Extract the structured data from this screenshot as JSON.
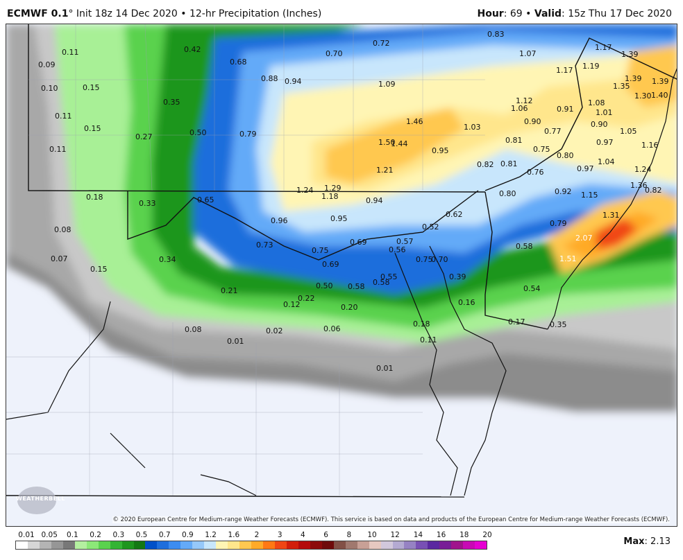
{
  "header": {
    "model": "ECMWF 0.1",
    "degree": "°",
    "init": "Init 18z 14 Dec 2020",
    "bullet": "•",
    "product": "12-hr Precipitation (Inches)",
    "hour_label": "Hour",
    "hour_value": "69",
    "valid_label": "Valid",
    "valid_value": "15z Thu 17 Dec 2020"
  },
  "map": {
    "credit": "© 2020 European Centre for Medium-range Weather Forecasts (ECMWF). This service is based on data and products of the European Centre for Medium-range Weather Forecasts (ECMWF).",
    "logo": "WEATHERBELL",
    "labels": [
      {
        "text": "0.11"
      },
      {
        "text": "0.09"
      },
      {
        "text": "0.10"
      },
      {
        "text": "0.11"
      },
      {
        "text": "0.11"
      },
      {
        "text": "0.15"
      },
      {
        "text": "0.15"
      },
      {
        "text": "0.35"
      },
      {
        "text": "0.27"
      },
      {
        "text": "0.42"
      },
      {
        "text": "0.50"
      },
      {
        "text": "0.68"
      },
      {
        "text": "0.88"
      },
      {
        "text": "0.94"
      },
      {
        "text": "0.70"
      },
      {
        "text": "0.72"
      },
      {
        "text": "0.83"
      },
      {
        "text": "1.09"
      },
      {
        "text": "0.79"
      },
      {
        "text": "1.46"
      },
      {
        "text": "1.50"
      },
      {
        "text": "1.44"
      },
      {
        "text": "1.21"
      },
      {
        "text": "0.95"
      },
      {
        "text": "1.03"
      },
      {
        "text": "1.07"
      },
      {
        "text": "1.17"
      },
      {
        "text": "1.17"
      },
      {
        "text": "1.19"
      },
      {
        "text": "1.39"
      },
      {
        "text": "1.39"
      },
      {
        "text": "1.35"
      },
      {
        "text": "1.39"
      },
      {
        "text": "1.30"
      },
      {
        "text": "1.40"
      },
      {
        "text": "1.12"
      },
      {
        "text": "1.06"
      },
      {
        "text": "0.91"
      },
      {
        "text": "1.08"
      },
      {
        "text": "1.01"
      },
      {
        "text": "0.90"
      },
      {
        "text": "0.90"
      },
      {
        "text": "0.77"
      },
      {
        "text": "1.05"
      },
      {
        "text": "0.81"
      },
      {
        "text": "0.97"
      },
      {
        "text": "1.16"
      },
      {
        "text": "0.75"
      },
      {
        "text": "0.82"
      },
      {
        "text": "0.81"
      },
      {
        "text": "0.80"
      },
      {
        "text": "0.76"
      },
      {
        "text": "0.97"
      },
      {
        "text": "1.04"
      },
      {
        "text": "1.24"
      },
      {
        "text": "0.18"
      },
      {
        "text": "0.33"
      },
      {
        "text": "0.65"
      },
      {
        "text": "1.24"
      },
      {
        "text": "1.29"
      },
      {
        "text": "1.18"
      },
      {
        "text": "0.94"
      },
      {
        "text": "0.80"
      },
      {
        "text": "0.92"
      },
      {
        "text": "1.15"
      },
      {
        "text": "1.36"
      },
      {
        "text": "0.82"
      },
      {
        "text": "0.96"
      },
      {
        "text": "0.95"
      },
      {
        "text": "0.62"
      },
      {
        "text": "0.52"
      },
      {
        "text": "1.31"
      },
      {
        "text": "0.79"
      },
      {
        "text": "0.08"
      },
      {
        "text": "0.73"
      },
      {
        "text": "0.69"
      },
      {
        "text": "0.57"
      },
      {
        "text": "0.58"
      },
      {
        "text": "2.07",
        "white": true
      },
      {
        "text": "0.75"
      },
      {
        "text": "0.56"
      },
      {
        "text": "0.07"
      },
      {
        "text": "0.34"
      },
      {
        "text": "0.69"
      },
      {
        "text": "0.75"
      },
      {
        "text": "0.70"
      },
      {
        "text": "1.51",
        "white": true
      },
      {
        "text": "0.15"
      },
      {
        "text": "0.55"
      },
      {
        "text": "0.39"
      },
      {
        "text": "0.50"
      },
      {
        "text": "0.58"
      },
      {
        "text": "0.58"
      },
      {
        "text": "0.21"
      },
      {
        "text": "0.54"
      },
      {
        "text": "0.22"
      },
      {
        "text": "0.12"
      },
      {
        "text": "0.16"
      },
      {
        "text": "0.20"
      },
      {
        "text": "0.17"
      },
      {
        "text": "0.35"
      },
      {
        "text": "0.18"
      },
      {
        "text": "0.08"
      },
      {
        "text": "0.02"
      },
      {
        "text": "0.06"
      },
      {
        "text": "0.01"
      },
      {
        "text": "0.11"
      },
      {
        "text": "0.01"
      }
    ]
  },
  "legend": {
    "ticks": [
      "0.01",
      "0.05",
      "0.1",
      "0.2",
      "0.3",
      "0.5",
      "0.7",
      "0.9",
      "1.2",
      "1.6",
      "2",
      "3",
      "4",
      "6",
      "8",
      "10",
      "12",
      "14",
      "16",
      "18",
      "20"
    ],
    "colors": [
      "#ffffff",
      "#d6d6d6",
      "#b4b4b4",
      "#969696",
      "#787878",
      "#b4f0a0",
      "#8ce878",
      "#5ad24e",
      "#34b434",
      "#1e961e",
      "#147814",
      "#0050c8",
      "#1e6edc",
      "#3c8cf0",
      "#64aaf8",
      "#96c8fa",
      "#c8e6fc",
      "#fff5b4",
      "#ffe68c",
      "#ffc850",
      "#ffaa28",
      "#ff7814",
      "#f04614",
      "#d21e0a",
      "#b40a0a",
      "#8c0a0a",
      "#6e0a0a",
      "#825046",
      "#a0786e",
      "#c8a096",
      "#e6c8c0",
      "#d2c8dc",
      "#b4aad2",
      "#9682c3",
      "#7850b4",
      "#5a28a0",
      "#781e96",
      "#a0148c",
      "#c80ab4",
      "#e600d2"
    ],
    "max_label": "Max",
    "max_value": "2.13"
  }
}
